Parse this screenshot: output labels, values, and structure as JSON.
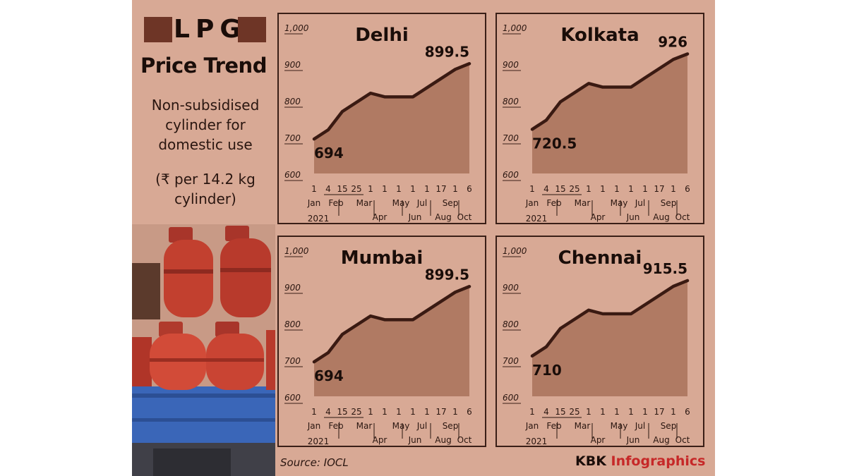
{
  "header": {
    "title": "LPG",
    "subtitle": "Price Trend",
    "description": [
      "Non-subsidised",
      "cylinder for",
      "domestic use"
    ],
    "unit": [
      "(₹ per 14.2 kg",
      "cylinder)"
    ]
  },
  "footer": {
    "source": "Source: IOCL",
    "credit_main": "KBK ",
    "credit_accent": "Infographics"
  },
  "colors": {
    "background": "#d8a995",
    "area_fill": "#b07a63",
    "line": "#3a1a12",
    "accent": "#c62828"
  },
  "chart_data": [
    {
      "type": "area",
      "title": "Delhi",
      "ylim": [
        600,
        1000
      ],
      "ytick_labels": [
        "1,000",
        "900",
        "800",
        "700",
        "600"
      ],
      "x_top_labels": [
        "1",
        "4",
        "15",
        "25",
        "1",
        "1",
        "1",
        "1",
        "1",
        "17",
        "1",
        "6"
      ],
      "month_labels": [
        {
          "text": "Jan",
          "row": 1
        },
        {
          "text": "Feb",
          "row": 1
        },
        {
          "text": "Mar",
          "row": 1
        },
        {
          "text": "Apr",
          "row": 2
        },
        {
          "text": "May",
          "row": 1
        },
        {
          "text": "Jun",
          "row": 2
        },
        {
          "text": "Jul",
          "row": 1
        },
        {
          "text": "Aug",
          "row": 2
        },
        {
          "text": "Sep",
          "row": 1
        },
        {
          "text": "Oct",
          "row": 2
        }
      ],
      "year_label": "2021",
      "x": [
        "1 Jan",
        "4 Feb",
        "15 Feb",
        "25 Feb",
        "1 Mar",
        "1 Apr",
        "1 May",
        "1 Jun",
        "1 Jul",
        "17 Aug",
        "1 Sep",
        "6 Oct"
      ],
      "values": [
        694,
        719,
        769,
        794,
        819,
        809,
        809,
        809,
        834,
        859,
        884,
        899.5
      ],
      "start_label": "694",
      "end_label": "899.5"
    },
    {
      "type": "area",
      "title": "Kolkata",
      "ylim": [
        600,
        1000
      ],
      "ytick_labels": [
        "1,000",
        "900",
        "800",
        "700",
        "600"
      ],
      "x_top_labels": [
        "1",
        "4",
        "15",
        "25",
        "1",
        "1",
        "1",
        "1",
        "1",
        "17",
        "1",
        "6"
      ],
      "month_labels": [
        {
          "text": "Jan",
          "row": 1
        },
        {
          "text": "Feb",
          "row": 1
        },
        {
          "text": "Mar",
          "row": 1
        },
        {
          "text": "Apr",
          "row": 2
        },
        {
          "text": "May",
          "row": 1
        },
        {
          "text": "Jun",
          "row": 2
        },
        {
          "text": "Jul",
          "row": 1
        },
        {
          "text": "Aug",
          "row": 2
        },
        {
          "text": "Sep",
          "row": 1
        },
        {
          "text": "Oct",
          "row": 2
        }
      ],
      "year_label": "2021",
      "x": [
        "1 Jan",
        "4 Feb",
        "15 Feb",
        "25 Feb",
        "1 Mar",
        "1 Apr",
        "1 May",
        "1 Jun",
        "1 Jul",
        "17 Aug",
        "1 Sep",
        "6 Oct"
      ],
      "values": [
        720.5,
        745.5,
        795.5,
        820.5,
        845.5,
        835.5,
        835.5,
        835.5,
        861,
        886,
        911,
        926
      ],
      "start_label": "720.5",
      "end_label": "926"
    },
    {
      "type": "area",
      "title": "Mumbai",
      "ylim": [
        600,
        1000
      ],
      "ytick_labels": [
        "1,000",
        "900",
        "800",
        "700",
        "600"
      ],
      "x_top_labels": [
        "1",
        "4",
        "15",
        "25",
        "1",
        "1",
        "1",
        "1",
        "1",
        "17",
        "1",
        "6"
      ],
      "month_labels": [
        {
          "text": "Jan",
          "row": 1
        },
        {
          "text": "Feb",
          "row": 1
        },
        {
          "text": "Mar",
          "row": 1
        },
        {
          "text": "Apr",
          "row": 2
        },
        {
          "text": "May",
          "row": 1
        },
        {
          "text": "Jun",
          "row": 2
        },
        {
          "text": "Jul",
          "row": 1
        },
        {
          "text": "Aug",
          "row": 2
        },
        {
          "text": "Sep",
          "row": 1
        },
        {
          "text": "Oct",
          "row": 2
        }
      ],
      "year_label": "2021",
      "x": [
        "1 Jan",
        "4 Feb",
        "15 Feb",
        "25 Feb",
        "1 Mar",
        "1 Apr",
        "1 May",
        "1 Jun",
        "1 Jul",
        "17 Aug",
        "1 Sep",
        "6 Oct"
      ],
      "values": [
        694,
        719,
        769,
        794,
        819,
        809,
        809,
        809,
        834,
        859,
        884,
        899.5
      ],
      "start_label": "694",
      "end_label": "899.5"
    },
    {
      "type": "area",
      "title": "Chennai",
      "ylim": [
        600,
        1000
      ],
      "ytick_labels": [
        "1,000",
        "900",
        "800",
        "700",
        "600"
      ],
      "x_top_labels": [
        "1",
        "4",
        "15",
        "25",
        "1",
        "1",
        "1",
        "1",
        "1",
        "17",
        "1",
        "6"
      ],
      "month_labels": [
        {
          "text": "Jan",
          "row": 1
        },
        {
          "text": "Feb",
          "row": 1
        },
        {
          "text": "Mar",
          "row": 1
        },
        {
          "text": "Apr",
          "row": 2
        },
        {
          "text": "May",
          "row": 1
        },
        {
          "text": "Jun",
          "row": 2
        },
        {
          "text": "Jul",
          "row": 1
        },
        {
          "text": "Aug",
          "row": 2
        },
        {
          "text": "Sep",
          "row": 1
        },
        {
          "text": "Oct",
          "row": 2
        }
      ],
      "year_label": "2021",
      "x": [
        "1 Jan",
        "4 Feb",
        "15 Feb",
        "25 Feb",
        "1 Mar",
        "1 Apr",
        "1 May",
        "1 Jun",
        "1 Jul",
        "17 Aug",
        "1 Sep",
        "6 Oct"
      ],
      "values": [
        710,
        735,
        785,
        810,
        835,
        825,
        825,
        825,
        850,
        875,
        900,
        915.5
      ],
      "start_label": "710",
      "end_label": "915.5"
    }
  ]
}
